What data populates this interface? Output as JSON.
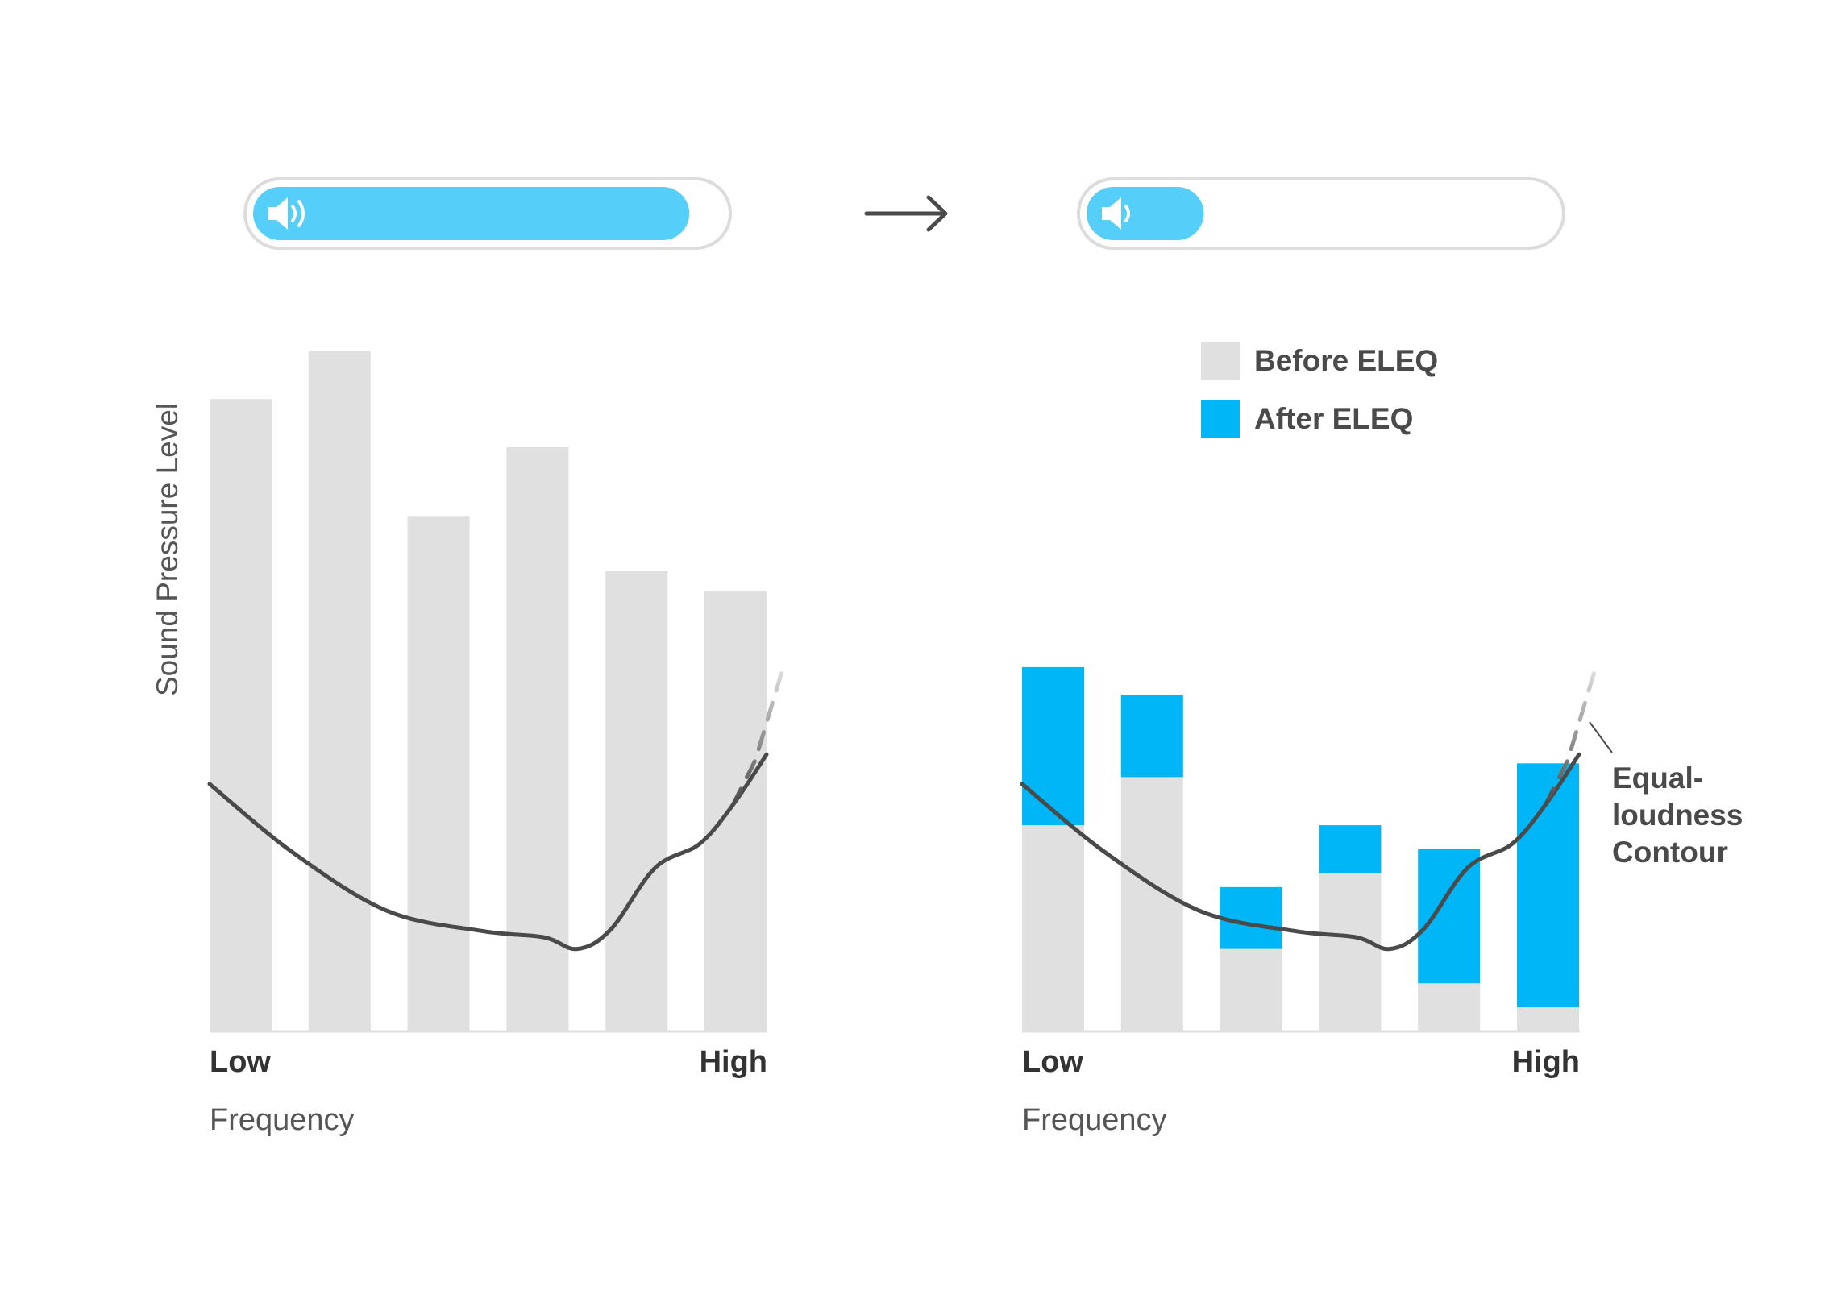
{
  "colors": {
    "before_bar": "#e0e0e0",
    "after_bar": "#00b6f7",
    "volume_fill": "#55cffa",
    "volume_track_border": "#dcdcdc",
    "curve": "#4a4a4a",
    "curve_faded": "#b8b8b8",
    "text_dark": "#333333",
    "text_mid": "#555555"
  },
  "icons": {
    "volume_before": "speaker-high-icon",
    "volume_after": "speaker-low-icon",
    "transition": "arrow-right-icon"
  },
  "volume": {
    "before_level": 0.93,
    "after_level": 0.25
  },
  "legend": {
    "before": "Before ELEQ",
    "after": "After ELEQ"
  },
  "annotation": {
    "lines": [
      "Equal-",
      "loudness",
      "Contour"
    ]
  },
  "chart_data": [
    {
      "type": "bar",
      "ylabel": "Sound Pressure Level",
      "xlabel": "Frequency",
      "x_low_label": "Low",
      "x_high_label": "High",
      "ylim": [
        0,
        100
      ],
      "values": [
        92,
        99,
        75,
        85,
        67,
        64
      ],
      "curve": [
        [
          0.0,
          36.0
        ],
        [
          0.15,
          26.0
        ],
        [
          0.32,
          17.5
        ],
        [
          0.49,
          14.6
        ],
        [
          0.6,
          13.7
        ],
        [
          0.66,
          12.0
        ],
        [
          0.72,
          14.8
        ],
        [
          0.8,
          23.8
        ],
        [
          0.88,
          27.3
        ],
        [
          0.94,
          33.0
        ],
        [
          1.0,
          40.3
        ]
      ],
      "curve_dashed": [
        [
          0.94,
          33.0
        ],
        [
          0.98,
          39.5
        ],
        [
          1.03,
          53.0
        ]
      ]
    },
    {
      "type": "bar",
      "xlabel": "Frequency",
      "x_low_label": "Low",
      "x_high_label": "High",
      "ylim": [
        0,
        100
      ],
      "series": [
        {
          "name": "Before ELEQ",
          "values": [
            30,
            37,
            12,
            23,
            7,
            3.5
          ]
        },
        {
          "name": "After ELEQ",
          "values": [
            53,
            49,
            21,
            30,
            26.5,
            39
          ]
        }
      ],
      "curve": [
        [
          0.0,
          36.0
        ],
        [
          0.15,
          26.0
        ],
        [
          0.32,
          17.5
        ],
        [
          0.49,
          14.6
        ],
        [
          0.6,
          13.7
        ],
        [
          0.66,
          12.0
        ],
        [
          0.72,
          14.8
        ],
        [
          0.8,
          23.8
        ],
        [
          0.88,
          27.3
        ],
        [
          0.94,
          33.0
        ],
        [
          1.0,
          40.3
        ]
      ],
      "curve_dashed": [
        [
          0.94,
          33.0
        ],
        [
          0.98,
          39.5
        ],
        [
          1.03,
          53.0
        ]
      ]
    }
  ]
}
